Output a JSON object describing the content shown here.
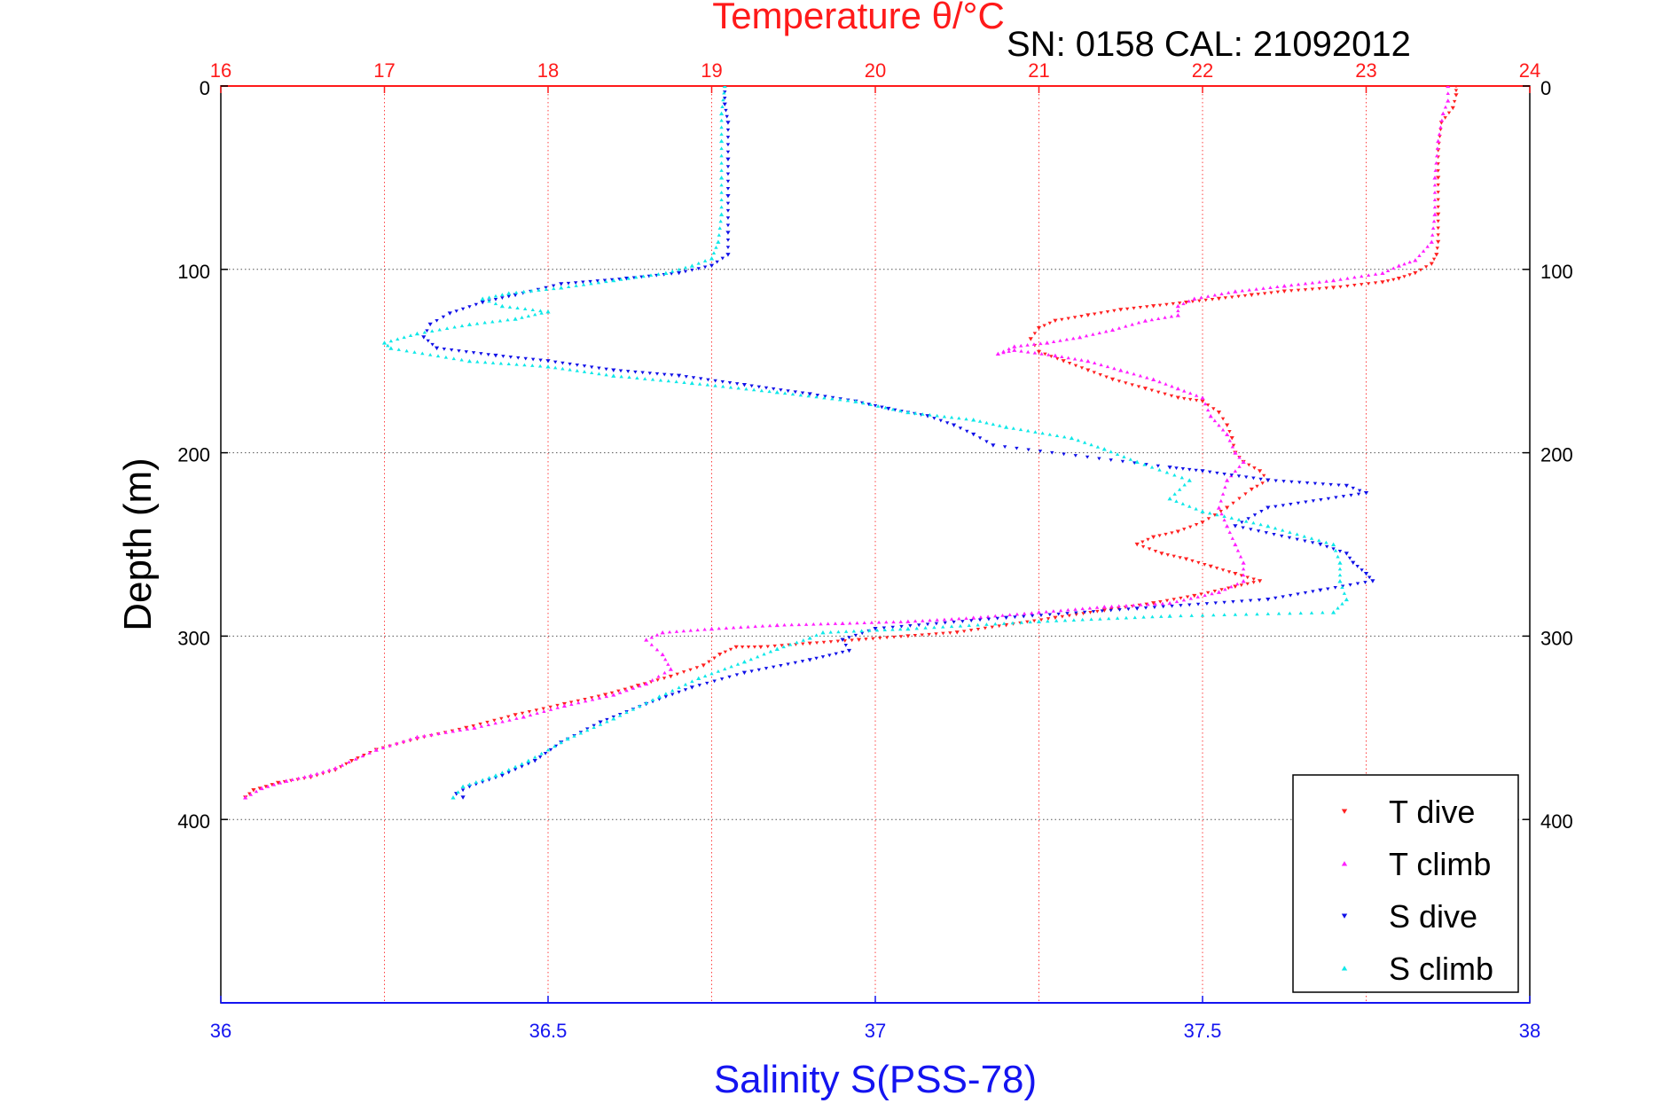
{
  "chart_data": {
    "type": "scatter",
    "title": "Temperature θ/°C",
    "subtitle": "SN: 0158  CAL: 21092012",
    "xlabel": "Salinity S(PSS-78)",
    "ylabel": "Depth (m)",
    "x_bottom": {
      "label": "Salinity S(PSS-78)",
      "lim": [
        36,
        38
      ],
      "ticks": [
        "36",
        "36.5",
        "37",
        "37.5",
        "38"
      ],
      "color": "#1414f0"
    },
    "x_top": {
      "label": "Temperature θ/°C",
      "lim": [
        16,
        24
      ],
      "ticks": [
        "16",
        "17",
        "18",
        "19",
        "20",
        "21",
        "22",
        "23",
        "24"
      ],
      "color": "#ff1a1a"
    },
    "y": {
      "label": "Depth (m)",
      "lim": [
        0,
        500
      ],
      "reversed": true,
      "ticks": [
        "0",
        "100",
        "200",
        "300",
        "400"
      ]
    },
    "grid": true,
    "legend": {
      "position": "bottom-right"
    },
    "series": [
      {
        "name": "T dive",
        "axis": "top",
        "marker": "triangle-down",
        "color": "#ff2020",
        "points": [
          [
            23.55,
            0
          ],
          [
            23.55,
            5
          ],
          [
            23.53,
            12
          ],
          [
            23.46,
            20
          ],
          [
            23.44,
            35
          ],
          [
            23.44,
            50
          ],
          [
            23.44,
            70
          ],
          [
            23.44,
            85
          ],
          [
            23.43,
            92
          ],
          [
            23.4,
            97
          ],
          [
            23.3,
            102
          ],
          [
            23.2,
            105
          ],
          [
            23.1,
            107
          ],
          [
            22.8,
            110
          ],
          [
            22.5,
            112
          ],
          [
            22.3,
            114
          ],
          [
            22.1,
            116
          ],
          [
            21.9,
            118
          ],
          [
            21.7,
            120
          ],
          [
            21.5,
            122
          ],
          [
            21.3,
            125
          ],
          [
            21.1,
            128
          ],
          [
            21.0,
            132
          ],
          [
            20.95,
            138
          ],
          [
            21.0,
            145
          ],
          [
            21.15,
            150
          ],
          [
            21.3,
            155
          ],
          [
            21.45,
            160
          ],
          [
            21.65,
            165
          ],
          [
            21.85,
            170
          ],
          [
            22.0,
            172
          ],
          [
            22.1,
            178
          ],
          [
            22.15,
            185
          ],
          [
            22.18,
            192
          ],
          [
            22.2,
            200
          ],
          [
            22.25,
            205
          ],
          [
            22.35,
            210
          ],
          [
            22.4,
            215
          ],
          [
            22.3,
            220
          ],
          [
            22.15,
            230
          ],
          [
            22.0,
            238
          ],
          [
            21.85,
            243
          ],
          [
            21.7,
            246
          ],
          [
            21.6,
            250
          ],
          [
            21.75,
            255
          ],
          [
            21.9,
            258
          ],
          [
            22.05,
            262
          ],
          [
            22.2,
            266
          ],
          [
            22.35,
            270
          ],
          [
            22.2,
            273
          ],
          [
            21.95,
            278
          ],
          [
            21.7,
            282
          ],
          [
            21.4,
            286
          ],
          [
            21.1,
            290
          ],
          [
            20.8,
            294
          ],
          [
            20.5,
            298
          ],
          [
            20.2,
            300
          ],
          [
            19.9,
            302
          ],
          [
            19.6,
            304
          ],
          [
            19.3,
            306
          ],
          [
            19.15,
            306
          ],
          [
            19.05,
            310
          ],
          [
            18.95,
            316
          ],
          [
            18.75,
            322
          ],
          [
            18.55,
            327
          ],
          [
            18.35,
            332
          ],
          [
            18.1,
            337
          ],
          [
            17.8,
            343
          ],
          [
            17.5,
            350
          ],
          [
            17.2,
            356
          ],
          [
            16.95,
            362
          ],
          [
            16.8,
            368
          ],
          [
            16.7,
            373
          ],
          [
            16.55,
            377
          ],
          [
            16.35,
            380
          ],
          [
            16.2,
            384
          ],
          [
            16.15,
            388
          ]
        ]
      },
      {
        "name": "T climb",
        "axis": "top",
        "marker": "triangle-up",
        "color": "#ff20ff",
        "points": [
          [
            16.15,
            388
          ],
          [
            16.25,
            383
          ],
          [
            16.4,
            379
          ],
          [
            16.55,
            376
          ],
          [
            16.7,
            372
          ],
          [
            16.95,
            362
          ],
          [
            17.2,
            355
          ],
          [
            17.55,
            350
          ],
          [
            17.85,
            344
          ],
          [
            18.1,
            338
          ],
          [
            18.4,
            332
          ],
          [
            18.6,
            326
          ],
          [
            18.75,
            318
          ],
          [
            18.7,
            310
          ],
          [
            18.6,
            302
          ],
          [
            18.7,
            298
          ],
          [
            19.0,
            296
          ],
          [
            19.4,
            294
          ],
          [
            19.8,
            293
          ],
          [
            20.2,
            292
          ],
          [
            20.6,
            290
          ],
          [
            21.0,
            287
          ],
          [
            21.4,
            284
          ],
          [
            21.8,
            282
          ],
          [
            22.1,
            276
          ],
          [
            22.25,
            270
          ],
          [
            22.25,
            260
          ],
          [
            22.2,
            250
          ],
          [
            22.15,
            240
          ],
          [
            22.1,
            230
          ],
          [
            22.15,
            215
          ],
          [
            22.25,
            205
          ],
          [
            22.2,
            200
          ],
          [
            22.15,
            190
          ],
          [
            22.05,
            180
          ],
          [
            22.0,
            170
          ],
          [
            21.85,
            165
          ],
          [
            21.7,
            160
          ],
          [
            21.5,
            155
          ],
          [
            21.3,
            150
          ],
          [
            21.1,
            147
          ],
          [
            20.85,
            144
          ],
          [
            20.75,
            146
          ],
          [
            20.85,
            142
          ],
          [
            21.05,
            140
          ],
          [
            21.25,
            137
          ],
          [
            21.45,
            133
          ],
          [
            21.65,
            128
          ],
          [
            21.85,
            125
          ],
          [
            21.85,
            120
          ],
          [
            21.95,
            116
          ],
          [
            22.2,
            112
          ],
          [
            22.5,
            109
          ],
          [
            22.8,
            106
          ],
          [
            23.1,
            102
          ],
          [
            23.2,
            98
          ],
          [
            23.3,
            95
          ],
          [
            23.4,
            85
          ],
          [
            23.42,
            70
          ],
          [
            23.42,
            50
          ],
          [
            23.44,
            30
          ],
          [
            23.47,
            15
          ],
          [
            23.5,
            8
          ],
          [
            23.5,
            0
          ]
        ]
      },
      {
        "name": "S dive",
        "axis": "bottom",
        "marker": "triangle-down",
        "color": "#1010e8",
        "points": [
          [
            36.77,
            0
          ],
          [
            36.77,
            10
          ],
          [
            36.775,
            20
          ],
          [
            36.775,
            40
          ],
          [
            36.775,
            60
          ],
          [
            36.775,
            80
          ],
          [
            36.775,
            92
          ],
          [
            36.75,
            98
          ],
          [
            36.7,
            102
          ],
          [
            36.62,
            105
          ],
          [
            36.52,
            108
          ],
          [
            36.45,
            114
          ],
          [
            36.4,
            118
          ],
          [
            36.35,
            124
          ],
          [
            36.32,
            130
          ],
          [
            36.31,
            137
          ],
          [
            36.33,
            143
          ],
          [
            36.42,
            147
          ],
          [
            36.5,
            150
          ],
          [
            36.6,
            155
          ],
          [
            36.7,
            158
          ],
          [
            36.8,
            163
          ],
          [
            36.9,
            168
          ],
          [
            36.97,
            172
          ],
          [
            37.02,
            176
          ],
          [
            37.08,
            180
          ],
          [
            37.12,
            185
          ],
          [
            37.15,
            190
          ],
          [
            37.18,
            196
          ],
          [
            37.45,
            208
          ],
          [
            37.5,
            210
          ],
          [
            37.6,
            215
          ],
          [
            37.72,
            218
          ],
          [
            37.75,
            222
          ],
          [
            37.6,
            230
          ],
          [
            37.55,
            240
          ],
          [
            37.68,
            250
          ],
          [
            37.72,
            255
          ],
          [
            37.73,
            260
          ],
          [
            37.75,
            266
          ],
          [
            37.76,
            270
          ],
          [
            37.68,
            275
          ],
          [
            37.6,
            280
          ],
          [
            37.4,
            285
          ],
          [
            37.2,
            290
          ],
          [
            37.0,
            296
          ],
          [
            36.95,
            302
          ],
          [
            36.96,
            308
          ],
          [
            36.9,
            313
          ],
          [
            36.8,
            320
          ],
          [
            36.72,
            328
          ],
          [
            36.65,
            337
          ],
          [
            36.58,
            347
          ],
          [
            36.52,
            358
          ],
          [
            36.48,
            368
          ],
          [
            36.43,
            376
          ],
          [
            36.38,
            382
          ],
          [
            36.36,
            386
          ],
          [
            36.37,
            388
          ]
        ]
      },
      {
        "name": "S climb",
        "axis": "bottom",
        "marker": "triangle-up",
        "color": "#10e8e8",
        "points": [
          [
            36.355,
            388
          ],
          [
            36.37,
            382
          ],
          [
            36.42,
            376
          ],
          [
            36.47,
            368
          ],
          [
            36.53,
            356
          ],
          [
            36.6,
            345
          ],
          [
            36.67,
            333
          ],
          [
            36.73,
            323
          ],
          [
            36.8,
            314
          ],
          [
            36.85,
            307
          ],
          [
            36.9,
            301
          ],
          [
            36.92,
            298
          ],
          [
            37.05,
            296
          ],
          [
            37.25,
            292
          ],
          [
            37.45,
            289
          ],
          [
            37.7,
            287
          ],
          [
            37.72,
            280
          ],
          [
            37.71,
            270
          ],
          [
            37.71,
            260
          ],
          [
            37.7,
            250
          ],
          [
            37.6,
            240
          ],
          [
            37.5,
            232
          ],
          [
            37.45,
            225
          ],
          [
            37.48,
            215
          ],
          [
            37.4,
            205
          ],
          [
            37.35,
            198
          ],
          [
            37.3,
            192
          ],
          [
            37.2,
            186
          ],
          [
            37.15,
            182
          ],
          [
            37.05,
            178
          ],
          [
            36.97,
            172
          ],
          [
            36.85,
            167
          ],
          [
            36.72,
            162
          ],
          [
            36.6,
            158
          ],
          [
            36.5,
            153
          ],
          [
            36.38,
            150
          ],
          [
            36.26,
            143
          ],
          [
            36.25,
            140
          ],
          [
            36.3,
            135
          ],
          [
            36.38,
            130
          ],
          [
            36.45,
            127
          ],
          [
            36.5,
            123
          ],
          [
            36.43,
            120
          ],
          [
            36.4,
            116
          ],
          [
            36.44,
            113
          ],
          [
            36.52,
            110
          ],
          [
            36.6,
            106
          ],
          [
            36.68,
            102
          ],
          [
            36.72,
            98
          ],
          [
            36.75,
            94
          ],
          [
            36.76,
            85
          ],
          [
            36.765,
            70
          ],
          [
            36.765,
            50
          ],
          [
            36.765,
            30
          ],
          [
            36.765,
            15
          ],
          [
            36.77,
            0
          ]
        ]
      }
    ]
  }
}
